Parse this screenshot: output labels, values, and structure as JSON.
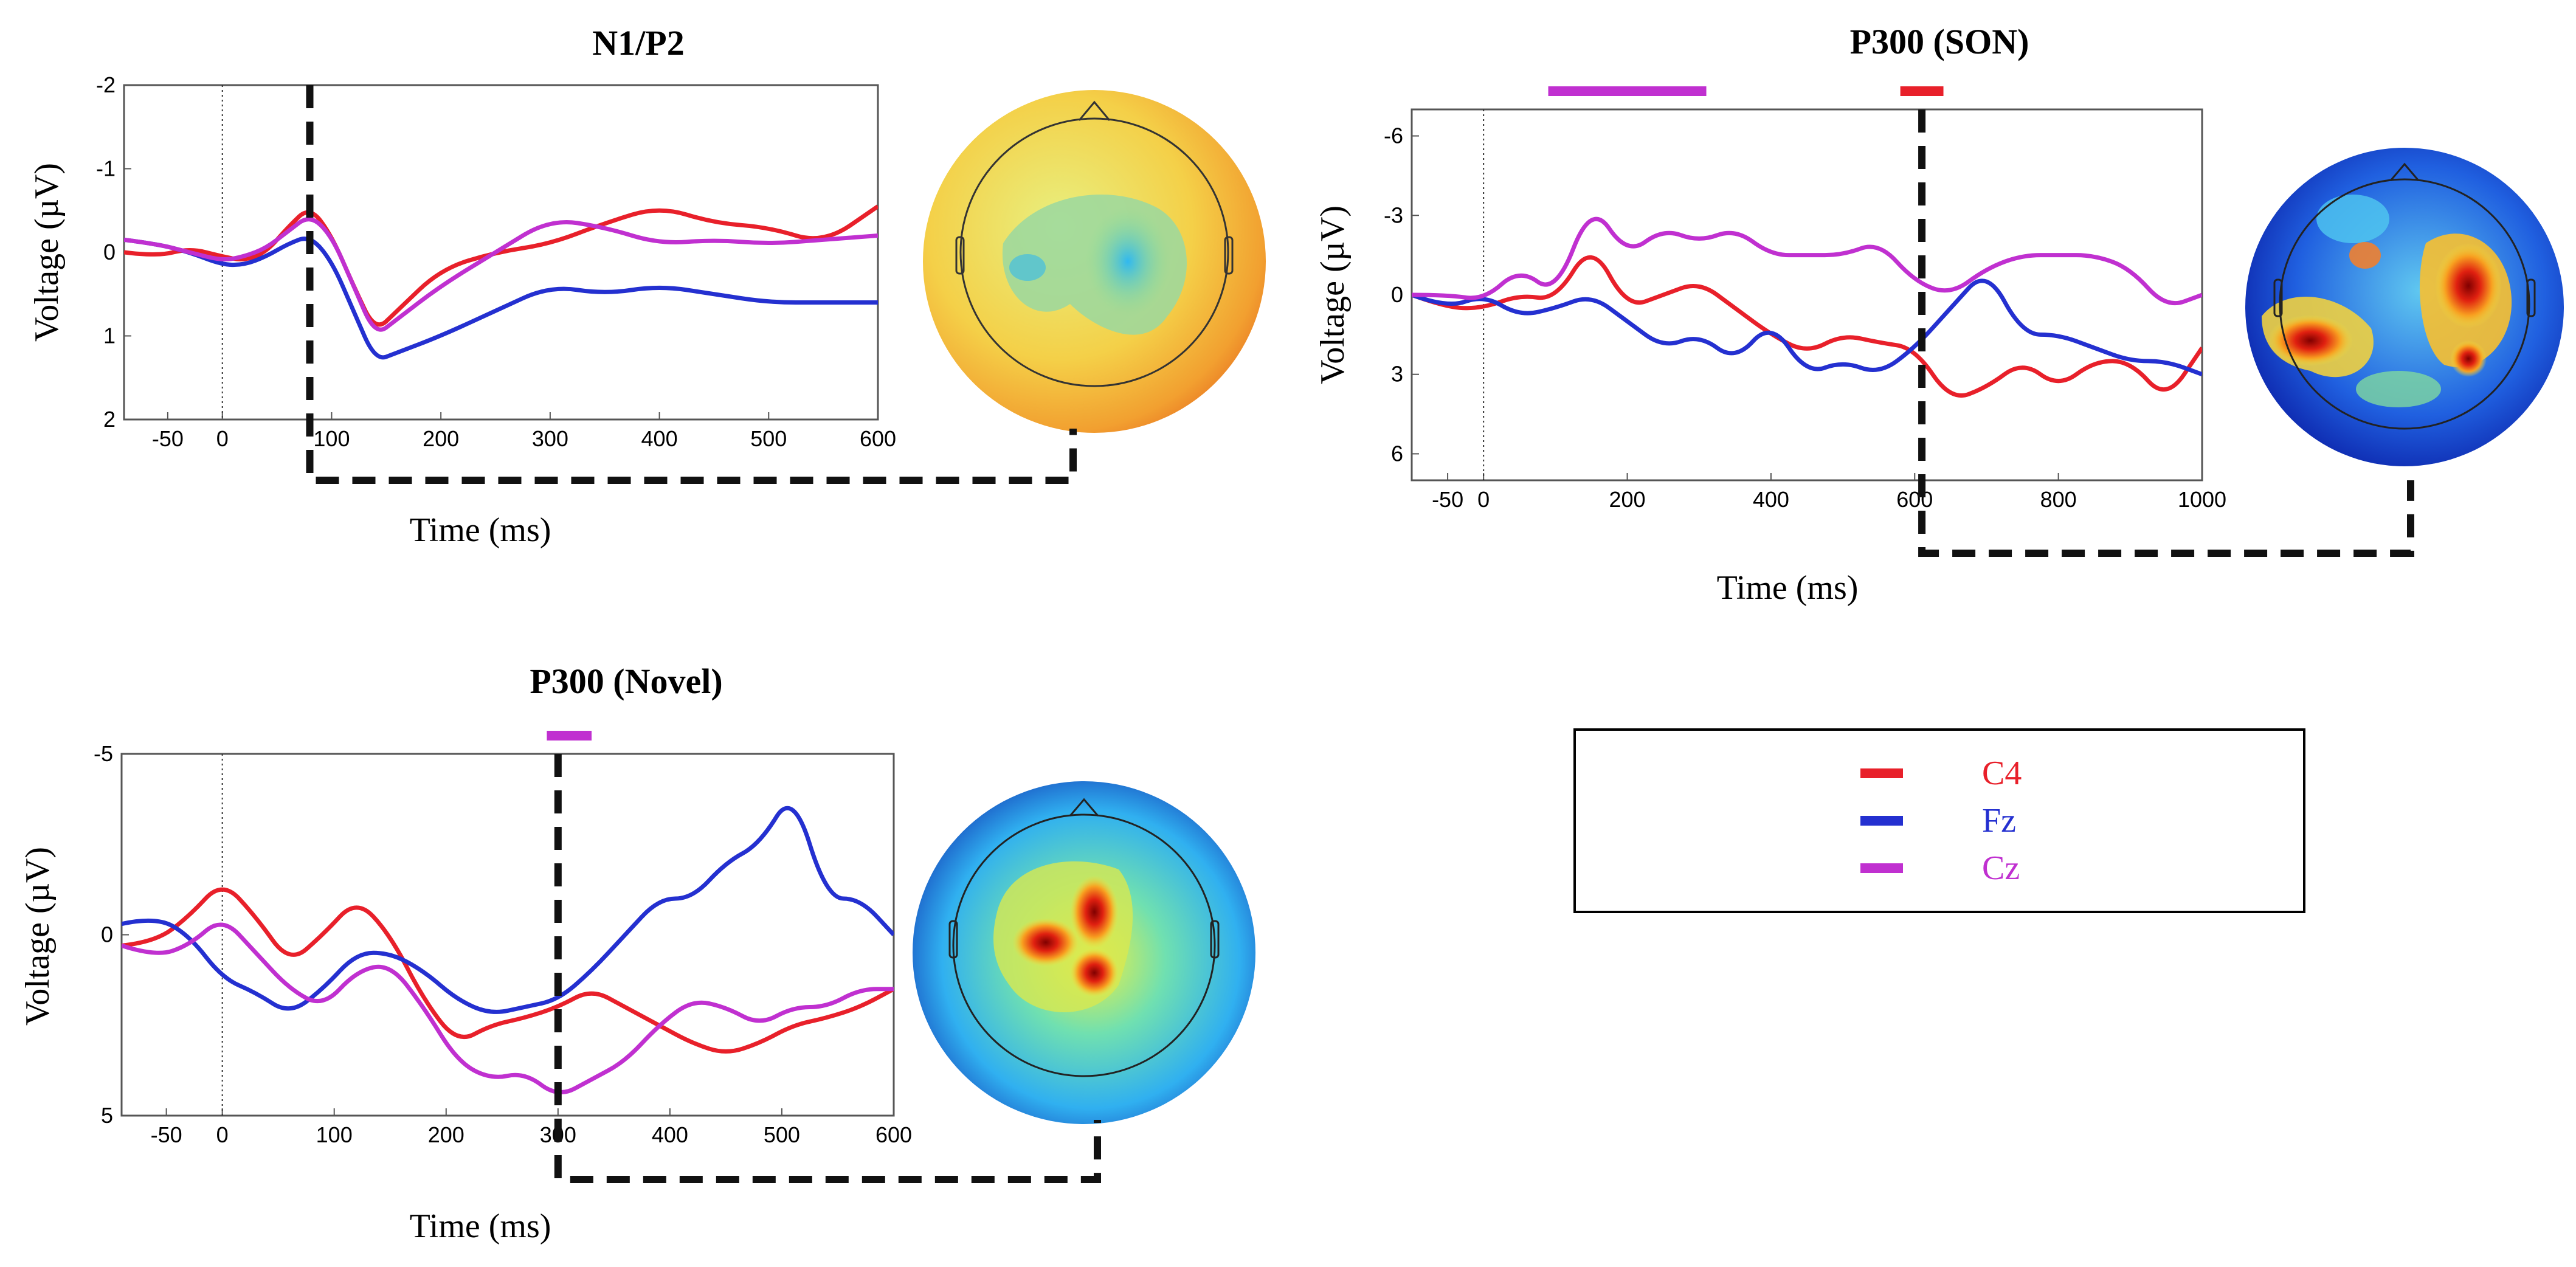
{
  "colors": {
    "C4": "#e8202a",
    "Fz": "#2430d0",
    "Cz": "#c030d0",
    "frame": "#555555",
    "dashed": "#111111"
  },
  "legend": [
    {
      "label": "C4",
      "color": "#e8202a"
    },
    {
      "label": "Fz",
      "color": "#2430d0"
    },
    {
      "label": "Cz",
      "color": "#c030d0"
    }
  ],
  "chart_data": [
    {
      "type": "line",
      "title": "N1/P2",
      "xlabel": "Time (ms)",
      "ylabel": "Voltage (µV)",
      "xlim": [
        -90,
        600
      ],
      "ylim": [
        -2,
        2
      ],
      "y_inverted": true,
      "x_ticks": [
        -50,
        0,
        100,
        200,
        300,
        400,
        500,
        600
      ],
      "y_ticks": [
        -2,
        -1,
        0,
        1,
        2
      ],
      "marker_time": 80,
      "highlight_bars": [],
      "topomap": "yellow-orange, slight central blue",
      "series": [
        {
          "name": "C4",
          "x": [
            -90,
            -60,
            -30,
            0,
            20,
            40,
            60,
            80,
            100,
            120,
            140,
            160,
            200,
            250,
            300,
            350,
            400,
            450,
            500,
            550,
            600
          ],
          "y": [
            0.0,
            0.05,
            -0.05,
            0.05,
            0.1,
            0.0,
            -0.3,
            -0.55,
            -0.2,
            0.4,
            0.95,
            0.7,
            0.2,
            0.0,
            -0.1,
            -0.35,
            -0.55,
            -0.35,
            -0.3,
            -0.1,
            -0.55
          ]
        },
        {
          "name": "Fz",
          "x": [
            -90,
            -60,
            -30,
            0,
            20,
            40,
            60,
            80,
            100,
            120,
            140,
            160,
            200,
            250,
            300,
            350,
            400,
            450,
            500,
            550,
            600
          ],
          "y": [
            -0.15,
            -0.1,
            0.0,
            0.15,
            0.15,
            0.05,
            -0.1,
            -0.2,
            0.1,
            0.7,
            1.3,
            1.2,
            1.0,
            0.7,
            0.4,
            0.5,
            0.4,
            0.5,
            0.6,
            0.6,
            0.6
          ]
        },
        {
          "name": "Cz",
          "x": [
            -90,
            -60,
            -30,
            0,
            20,
            40,
            60,
            80,
            100,
            120,
            140,
            160,
            200,
            250,
            300,
            350,
            400,
            450,
            500,
            550,
            600
          ],
          "y": [
            -0.15,
            -0.1,
            0.0,
            0.1,
            0.05,
            -0.05,
            -0.25,
            -0.45,
            -0.2,
            0.4,
            1.0,
            0.8,
            0.4,
            0.0,
            -0.4,
            -0.3,
            -0.1,
            -0.15,
            -0.1,
            -0.15,
            -0.2
          ]
        }
      ]
    },
    {
      "type": "line",
      "title": "P300 (SON)",
      "xlabel": "Time (ms)",
      "ylabel": "Voltage (µV)",
      "xlim": [
        -100,
        1000
      ],
      "ylim": [
        -7,
        7
      ],
      "y_inverted": true,
      "x_ticks": [
        -50,
        0,
        200,
        400,
        600,
        800,
        1000
      ],
      "y_ticks": [
        -6,
        -3,
        0,
        3,
        6
      ],
      "marker_time": 610,
      "highlight_bars": [
        {
          "series": "Cz",
          "start": 90,
          "end": 310
        },
        {
          "series": "C4",
          "start": 580,
          "end": 640
        }
      ],
      "topomap": "blue with red/orange lateral clusters",
      "series": [
        {
          "name": "C4",
          "x": [
            -100,
            -50,
            0,
            50,
            100,
            150,
            200,
            250,
            300,
            350,
            400,
            450,
            500,
            550,
            600,
            650,
            700,
            750,
            800,
            850,
            900,
            950,
            1000
          ],
          "y": [
            0.0,
            0.5,
            0.5,
            0.0,
            0.2,
            -2.0,
            0.5,
            0.0,
            -0.5,
            0.5,
            1.5,
            2.2,
            1.5,
            1.8,
            2.0,
            4.0,
            3.5,
            2.5,
            3.5,
            2.5,
            2.5,
            4.0,
            2.0
          ]
        },
        {
          "name": "Fz",
          "x": [
            -100,
            -50,
            0,
            50,
            100,
            150,
            200,
            250,
            300,
            350,
            400,
            450,
            500,
            550,
            600,
            650,
            700,
            750,
            800,
            850,
            900,
            950,
            1000
          ],
          "y": [
            0.0,
            0.5,
            0.0,
            0.8,
            0.5,
            0.0,
            1.0,
            2.0,
            1.5,
            2.5,
            1.0,
            3.0,
            2.5,
            3.0,
            2.0,
            0.5,
            -1.0,
            1.5,
            1.5,
            2.0,
            2.5,
            2.5,
            3.0
          ]
        },
        {
          "name": "Cz",
          "x": [
            -100,
            -50,
            0,
            50,
            100,
            150,
            200,
            250,
            300,
            350,
            400,
            450,
            500,
            550,
            600,
            650,
            700,
            750,
            800,
            850,
            900,
            950,
            1000
          ],
          "y": [
            0.0,
            0.0,
            0.2,
            -1.0,
            0.0,
            -3.5,
            -1.5,
            -2.5,
            -2.0,
            -2.5,
            -1.5,
            -1.5,
            -1.5,
            -2.0,
            -0.5,
            0.0,
            -1.0,
            -1.5,
            -1.5,
            -1.5,
            -1.0,
            0.5,
            0.0
          ]
        }
      ]
    },
    {
      "type": "line",
      "title": "P300 (Novel)",
      "xlabel": "Time (ms)",
      "ylabel": "Voltage (µV)",
      "xlim": [
        -90,
        600
      ],
      "ylim": [
        -5,
        5
      ],
      "y_inverted": true,
      "x_ticks": [
        -50,
        0,
        100,
        200,
        300,
        400,
        500,
        600
      ],
      "y_ticks": [
        -5,
        0,
        5
      ],
      "marker_time": 300,
      "highlight_bars": [
        {
          "series": "Cz",
          "start": 290,
          "end": 330
        }
      ],
      "topomap": "cyan/blue with central red focus",
      "series": [
        {
          "name": "C4",
          "x": [
            -90,
            -60,
            -30,
            0,
            30,
            60,
            90,
            120,
            150,
            180,
            210,
            240,
            270,
            300,
            330,
            360,
            390,
            420,
            450,
            480,
            510,
            540,
            570,
            600
          ],
          "y": [
            0.3,
            0.2,
            -0.5,
            -1.5,
            -0.5,
            0.8,
            0.0,
            -1.0,
            0.0,
            1.8,
            3.0,
            2.5,
            2.3,
            2.0,
            1.5,
            2.0,
            2.5,
            3.0,
            3.3,
            3.0,
            2.5,
            2.3,
            2.0,
            1.5
          ]
        },
        {
          "name": "Fz",
          "x": [
            -90,
            -60,
            -30,
            0,
            30,
            60,
            90,
            120,
            150,
            180,
            210,
            240,
            270,
            300,
            330,
            360,
            390,
            420,
            450,
            480,
            510,
            540,
            570,
            600
          ],
          "y": [
            -0.3,
            -0.5,
            0.0,
            1.2,
            1.6,
            2.2,
            1.5,
            0.5,
            0.5,
            1.0,
            1.8,
            2.2,
            2.0,
            1.8,
            1.0,
            0.0,
            -1.0,
            -1.0,
            -2.0,
            -2.5,
            -4.0,
            -1.0,
            -1.0,
            0.0
          ]
        },
        {
          "name": "Cz",
          "x": [
            -90,
            -60,
            -30,
            0,
            30,
            60,
            90,
            120,
            150,
            180,
            210,
            240,
            270,
            300,
            330,
            360,
            390,
            420,
            450,
            480,
            510,
            540,
            570,
            600
          ],
          "y": [
            0.3,
            0.6,
            0.3,
            -0.5,
            0.5,
            1.5,
            2.0,
            1.0,
            0.8,
            2.0,
            3.5,
            4.0,
            3.8,
            4.5,
            4.0,
            3.5,
            2.5,
            1.8,
            2.0,
            2.5,
            2.0,
            2.0,
            1.5,
            1.5
          ]
        }
      ]
    }
  ]
}
